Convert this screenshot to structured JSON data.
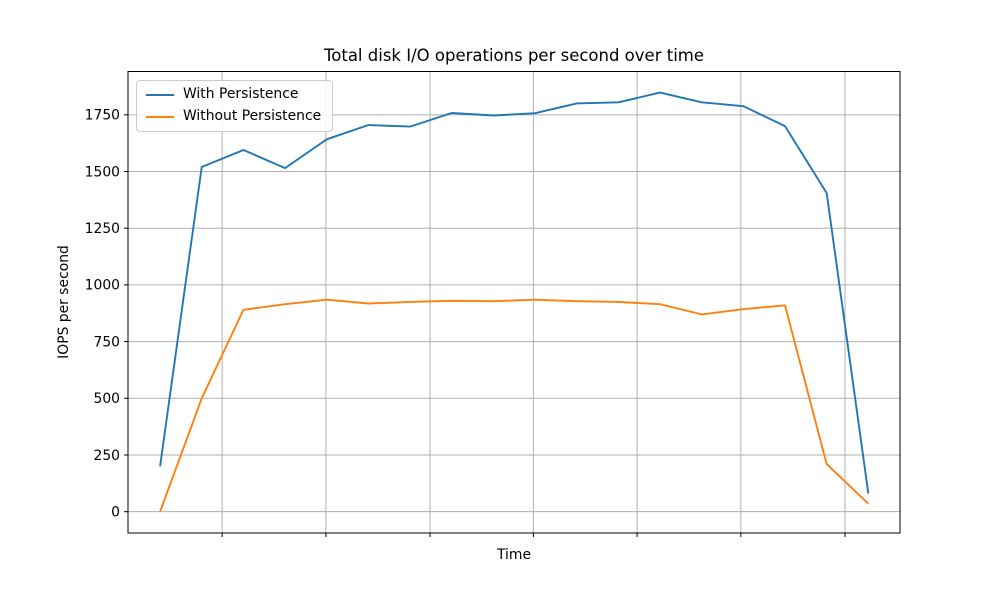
{
  "chart_data": {
    "type": "line",
    "title": "Total disk I/O operations per second over time",
    "xlabel": "Time",
    "ylabel": "IOPS per second",
    "grid": true,
    "legend_position": "upper left",
    "x": [
      0,
      1,
      2,
      3,
      4,
      5,
      6,
      7,
      8,
      9,
      10,
      11,
      12,
      13,
      14,
      15,
      16,
      17
    ],
    "series": [
      {
        "name": "With Persistence",
        "color": "#1f77b4",
        "values": [
          200,
          1520,
          1595,
          1515,
          1642,
          1705,
          1698,
          1758,
          1747,
          1757,
          1800,
          1805,
          1848,
          1805,
          1788,
          1700,
          1405,
          80
        ]
      },
      {
        "name": "Without Persistence",
        "color": "#ff7f0e",
        "values": [
          0,
          500,
          890,
          915,
          935,
          918,
          925,
          930,
          928,
          935,
          928,
          925,
          915,
          870,
          893,
          910,
          210,
          35
        ]
      }
    ],
    "xlim": [
      -0.77,
      17.76
    ],
    "ylim": [
      -94,
      1941
    ],
    "y_ticks": [
      0,
      250,
      500,
      750,
      1000,
      1250,
      1500,
      1750
    ],
    "x_tick_positions": [
      1.49,
      3.98,
      6.48,
      8.96,
      11.45,
      13.94,
      16.44
    ],
    "x_tick_labels": [],
    "colors": {
      "grid": "#b0b0b0",
      "spine": "#000000",
      "tick_text": "#000000",
      "background": "#ffffff"
    }
  }
}
